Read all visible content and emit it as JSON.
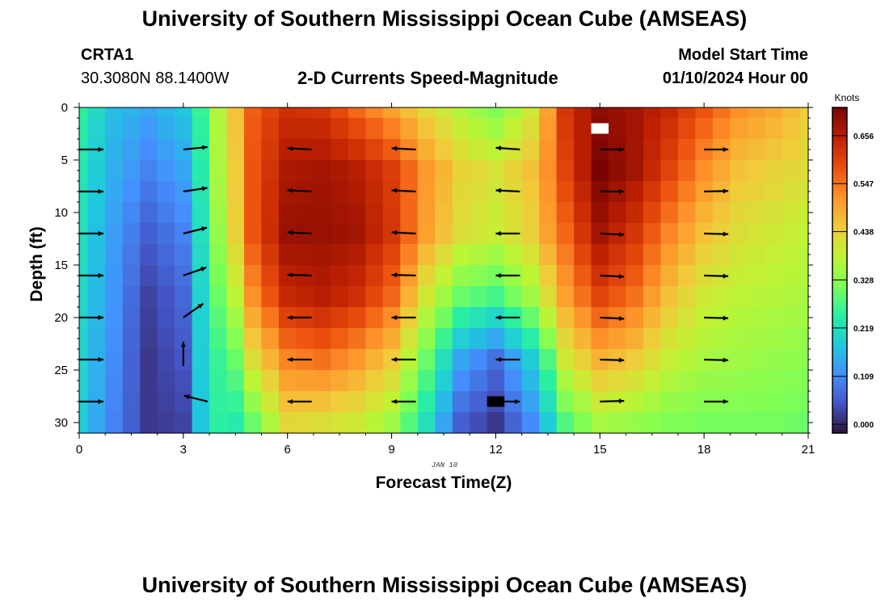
{
  "header": {
    "title": "University of Southern Mississippi Ocean Cube (AMSEAS)",
    "station": "CRTA1",
    "coords": "30.3080N  88.1400W",
    "chart_subtitle": "2-D Currents Speed-Magnitude",
    "model_start_label": "Model Start Time",
    "model_start_value": "01/10/2024 Hour 00"
  },
  "footer": {
    "title": "University of Southern Mississippi Ocean Cube (AMSEAS)"
  },
  "chart_data": {
    "type": "heatmap",
    "title": "2-D Currents Speed-Magnitude",
    "xlabel": "Forecast Time(Z)",
    "ylabel": "Depth (ft)",
    "date_annotation": "JAN 10",
    "xlim": [
      0,
      21
    ],
    "ylim": [
      31,
      0
    ],
    "x_ticks": [
      0,
      3,
      6,
      9,
      12,
      15,
      18,
      21
    ],
    "y_ticks": [
      0,
      5,
      10,
      15,
      20,
      25,
      30
    ],
    "colorbar": {
      "label": "Knots",
      "min": -0.02,
      "max": 0.72,
      "ticks": [
        "0.000",
        "0.109",
        "0.219",
        "0.328",
        "0.438",
        "0.547",
        "0.656"
      ],
      "tick_values": [
        0.0,
        0.109,
        0.219,
        0.328,
        0.438,
        0.547,
        0.656
      ],
      "colors": [
        "#30123b",
        "#4454c4",
        "#4490fe",
        "#1fc8de",
        "#29efa2",
        "#7dff56",
        "#c1f334",
        "#f1ca3a",
        "#fe922a",
        "#ea4e0d",
        "#be2102",
        "#7a0403"
      ]
    },
    "grid_times": [
      0,
      0.5,
      1,
      1.5,
      2,
      2.5,
      3,
      3.5,
      4,
      4.5,
      5,
      5.5,
      6,
      6.5,
      7,
      7.5,
      8,
      8.5,
      9,
      9.5,
      10,
      10.5,
      11,
      11.5,
      12,
      12.5,
      13,
      13.5,
      14,
      14.5,
      15,
      15.5,
      16,
      16.5,
      17,
      17.5,
      18,
      18.5,
      19,
      19.5,
      20,
      20.5,
      21
    ],
    "grid_depths": [
      0,
      2,
      4,
      6,
      8,
      10,
      12,
      14,
      16,
      18,
      20,
      22,
      24,
      26,
      28,
      30
    ],
    "speed_profiles": [
      {
        "t": 0,
        "d": [
          0,
          6,
          12,
          18,
          24,
          30
        ],
        "v": [
          0.25,
          0.23,
          0.22,
          0.21,
          0.2,
          0.19
        ]
      },
      {
        "t": 1,
        "d": [
          0,
          6,
          12,
          18,
          24,
          30
        ],
        "v": [
          0.17,
          0.15,
          0.13,
          0.12,
          0.11,
          0.1
        ]
      },
      {
        "t": 2,
        "d": [
          0,
          6,
          12,
          18,
          24,
          30
        ],
        "v": [
          0.14,
          0.1,
          0.06,
          0.03,
          0.02,
          0.02
        ]
      },
      {
        "t": 3,
        "d": [
          0,
          6,
          12,
          18,
          24,
          30
        ],
        "v": [
          0.18,
          0.14,
          0.1,
          0.07,
          0.05,
          0.03
        ]
      },
      {
        "t": 3.5,
        "d": [
          0,
          6,
          12,
          18,
          24,
          30
        ],
        "v": [
          0.26,
          0.24,
          0.22,
          0.2,
          0.19,
          0.18
        ]
      },
      {
        "t": 4,
        "d": [
          0,
          6,
          12,
          18,
          24,
          30
        ],
        "v": [
          0.37,
          0.36,
          0.34,
          0.3,
          0.26,
          0.25
        ]
      },
      {
        "t": 4.5,
        "d": [
          0,
          6,
          12,
          18,
          24,
          30
        ],
        "v": [
          0.46,
          0.45,
          0.44,
          0.38,
          0.3,
          0.24
        ]
      },
      {
        "t": 5,
        "d": [
          0,
          6,
          12,
          18,
          24,
          30
        ],
        "v": [
          0.57,
          0.58,
          0.58,
          0.52,
          0.42,
          0.3
        ]
      },
      {
        "t": 6,
        "d": [
          0,
          6,
          12,
          18,
          24,
          30
        ],
        "v": [
          0.63,
          0.67,
          0.69,
          0.64,
          0.53,
          0.43
        ]
      },
      {
        "t": 7,
        "d": [
          0,
          6,
          12,
          18,
          24,
          30
        ],
        "v": [
          0.62,
          0.68,
          0.69,
          0.66,
          0.55,
          0.42
        ]
      },
      {
        "t": 8,
        "d": [
          0,
          6,
          12,
          18,
          24,
          30
        ],
        "v": [
          0.56,
          0.66,
          0.68,
          0.63,
          0.51,
          0.4
        ]
      },
      {
        "t": 9,
        "d": [
          0,
          6,
          12,
          18,
          24,
          30
        ],
        "v": [
          0.5,
          0.61,
          0.62,
          0.56,
          0.45,
          0.35
        ]
      },
      {
        "t": 10,
        "d": [
          0,
          6,
          12,
          18,
          24,
          30
        ],
        "v": [
          0.43,
          0.51,
          0.5,
          0.4,
          0.3,
          0.22
        ]
      },
      {
        "t": 11,
        "d": [
          0,
          6,
          12,
          18,
          24,
          30
        ],
        "v": [
          0.37,
          0.44,
          0.42,
          0.3,
          0.14,
          0.06
        ]
      },
      {
        "t": 12,
        "d": [
          0,
          6,
          12,
          18,
          24,
          30
        ],
        "v": [
          0.32,
          0.41,
          0.39,
          0.27,
          0.08,
          0.02
        ]
      },
      {
        "t": 13,
        "d": [
          0,
          6,
          12,
          18,
          24,
          30
        ],
        "v": [
          0.4,
          0.46,
          0.44,
          0.35,
          0.19,
          0.11
        ]
      },
      {
        "t": 13.5,
        "d": [
          0,
          6,
          12,
          18,
          24,
          30
        ],
        "v": [
          0.5,
          0.52,
          0.5,
          0.42,
          0.28,
          0.19
        ]
      },
      {
        "t": 14,
        "d": [
          0,
          6,
          12,
          18,
          24,
          30
        ],
        "v": [
          0.62,
          0.6,
          0.56,
          0.5,
          0.4,
          0.28
        ]
      },
      {
        "t": 15,
        "d": [
          0,
          6,
          12,
          18,
          24,
          30
        ],
        "v": [
          0.7,
          0.72,
          0.68,
          0.6,
          0.48,
          0.36
        ]
      },
      {
        "t": 16,
        "d": [
          0,
          6,
          12,
          18,
          24,
          30
        ],
        "v": [
          0.68,
          0.68,
          0.62,
          0.55,
          0.45,
          0.34
        ]
      },
      {
        "t": 17,
        "d": [
          0,
          6,
          12,
          18,
          24,
          30
        ],
        "v": [
          0.64,
          0.6,
          0.53,
          0.46,
          0.39,
          0.32
        ]
      },
      {
        "t": 18,
        "d": [
          0,
          6,
          12,
          18,
          24,
          30
        ],
        "v": [
          0.58,
          0.52,
          0.46,
          0.4,
          0.36,
          0.31
        ]
      },
      {
        "t": 19,
        "d": [
          0,
          6,
          12,
          18,
          24,
          30
        ],
        "v": [
          0.52,
          0.46,
          0.42,
          0.38,
          0.35,
          0.31
        ]
      },
      {
        "t": 20,
        "d": [
          0,
          6,
          12,
          18,
          24,
          30
        ],
        "v": [
          0.49,
          0.44,
          0.4,
          0.37,
          0.34,
          0.31
        ]
      },
      {
        "t": 21,
        "d": [
          0,
          6,
          12,
          18,
          24,
          30
        ],
        "v": [
          0.45,
          0.42,
          0.38,
          0.36,
          0.33,
          0.3
        ]
      }
    ],
    "vectors": [
      {
        "t": 0,
        "d": 4,
        "dir": 1,
        "dy": 0
      },
      {
        "t": 0,
        "d": 8,
        "dir": 1,
        "dy": 0
      },
      {
        "t": 0,
        "d": 12,
        "dir": 1,
        "dy": 0
      },
      {
        "t": 0,
        "d": 16,
        "dir": 1,
        "dy": 0
      },
      {
        "t": 0,
        "d": 20,
        "dir": 1,
        "dy": 0
      },
      {
        "t": 0,
        "d": 24,
        "dir": 1,
        "dy": 0
      },
      {
        "t": 0,
        "d": 28,
        "dir": 1,
        "dy": 0
      },
      {
        "t": 3,
        "d": 4,
        "dir": 1,
        "dy": -0.1
      },
      {
        "t": 3,
        "d": 8,
        "dir": 1,
        "dy": -0.15
      },
      {
        "t": 3,
        "d": 12,
        "dir": 1,
        "dy": -0.25
      },
      {
        "t": 3,
        "d": 16,
        "dir": 1,
        "dy": -0.35
      },
      {
        "t": 3,
        "d": 20,
        "dir": 1,
        "dy": -0.7
      },
      {
        "t": 3,
        "d": 24,
        "dir": 0,
        "dy": -1
      },
      {
        "t": 3,
        "d": 28,
        "dir": -1,
        "dy": -0.25
      },
      {
        "t": 6,
        "d": 4,
        "dir": -1,
        "dy": -0.05
      },
      {
        "t": 6,
        "d": 8,
        "dir": -1,
        "dy": -0.05
      },
      {
        "t": 6,
        "d": 12,
        "dir": -1,
        "dy": -0.05
      },
      {
        "t": 6,
        "d": 16,
        "dir": -1,
        "dy": -0.03
      },
      {
        "t": 6,
        "d": 20,
        "dir": -1,
        "dy": 0
      },
      {
        "t": 6,
        "d": 24,
        "dir": -1,
        "dy": 0
      },
      {
        "t": 6,
        "d": 28,
        "dir": -1,
        "dy": 0
      },
      {
        "t": 9,
        "d": 4,
        "dir": -1,
        "dy": -0.05
      },
      {
        "t": 9,
        "d": 8,
        "dir": -1,
        "dy": -0.05
      },
      {
        "t": 9,
        "d": 12,
        "dir": -1,
        "dy": -0.05
      },
      {
        "t": 9,
        "d": 16,
        "dir": -1,
        "dy": -0.03
      },
      {
        "t": 9,
        "d": 20,
        "dir": -1,
        "dy": 0
      },
      {
        "t": 9,
        "d": 24,
        "dir": -1,
        "dy": 0
      },
      {
        "t": 9,
        "d": 28,
        "dir": -1,
        "dy": 0
      },
      {
        "t": 12,
        "d": 4,
        "dir": -1,
        "dy": -0.07
      },
      {
        "t": 12,
        "d": 8,
        "dir": -1,
        "dy": -0.05
      },
      {
        "t": 12,
        "d": 12,
        "dir": -1,
        "dy": 0
      },
      {
        "t": 12,
        "d": 16,
        "dir": -1,
        "dy": 0
      },
      {
        "t": 12,
        "d": 20,
        "dir": -1,
        "dy": 0
      },
      {
        "t": 12,
        "d": 24,
        "dir": -1,
        "dy": 0
      },
      {
        "t": 12,
        "d": 28,
        "dir": 1,
        "dy": 0
      },
      {
        "t": 15,
        "d": 4,
        "dir": 1,
        "dy": 0
      },
      {
        "t": 15,
        "d": 8,
        "dir": 1,
        "dy": 0
      },
      {
        "t": 15,
        "d": 12,
        "dir": 1,
        "dy": 0.05
      },
      {
        "t": 15,
        "d": 16,
        "dir": 1,
        "dy": 0.05
      },
      {
        "t": 15,
        "d": 20,
        "dir": 1,
        "dy": 0.05
      },
      {
        "t": 15,
        "d": 24,
        "dir": 1,
        "dy": 0.03
      },
      {
        "t": 15,
        "d": 28,
        "dir": 1,
        "dy": -0.03
      },
      {
        "t": 18,
        "d": 4,
        "dir": 1,
        "dy": 0
      },
      {
        "t": 18,
        "d": 8,
        "dir": 1,
        "dy": -0.02
      },
      {
        "t": 18,
        "d": 12,
        "dir": 1,
        "dy": 0.03
      },
      {
        "t": 18,
        "d": 16,
        "dir": 1,
        "dy": 0.03
      },
      {
        "t": 18,
        "d": 20,
        "dir": 1,
        "dy": 0.03
      },
      {
        "t": 18,
        "d": 24,
        "dir": 1,
        "dy": 0.03
      },
      {
        "t": 18,
        "d": 28,
        "dir": 1,
        "dy": 0
      }
    ],
    "missing_cells": [
      {
        "t_start": 14.75,
        "t_end": 15.25,
        "d_start": 1.5,
        "d_end": 2.5,
        "fill": "#ffffff"
      },
      {
        "t_start": 11.75,
        "t_end": 12.25,
        "d_start": 27.5,
        "d_end": 28.5,
        "fill": "#000000"
      }
    ]
  }
}
